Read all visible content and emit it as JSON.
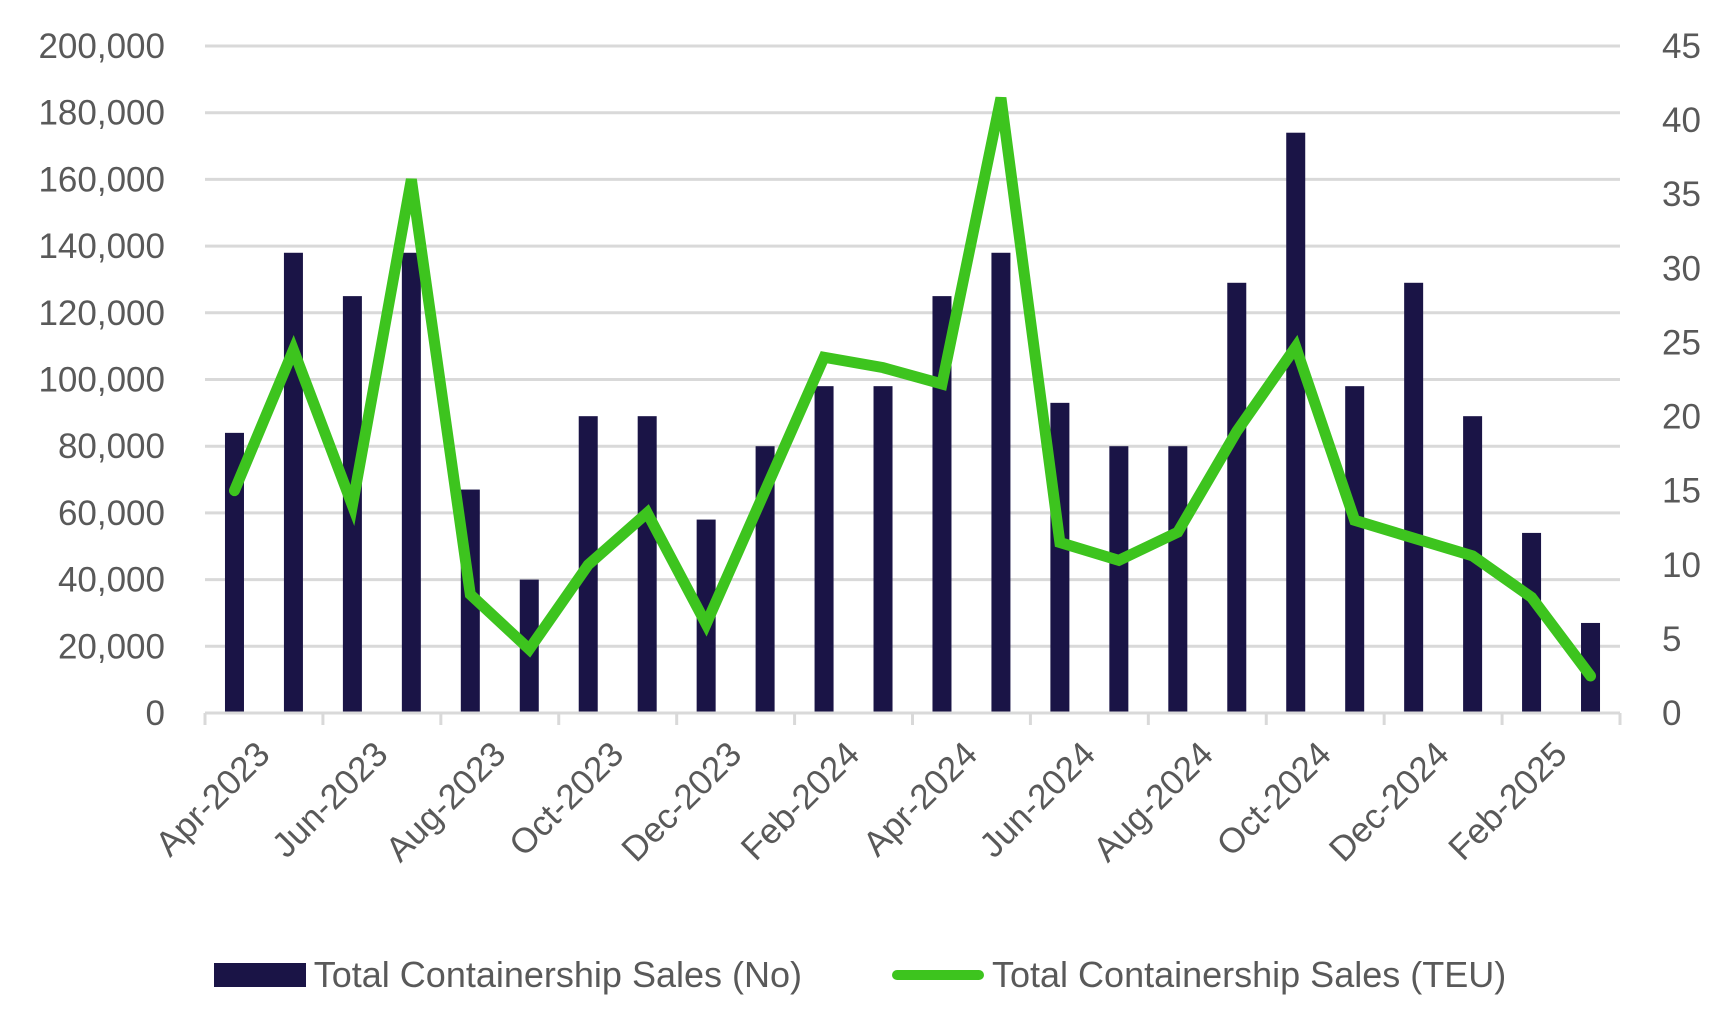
{
  "chart_data": {
    "type": "bar",
    "categories": [
      "Apr-2023",
      "May-2023",
      "Jun-2023",
      "Jul-2023",
      "Aug-2023",
      "Sep-2023",
      "Oct-2023",
      "Nov-2023",
      "Dec-2023",
      "Jan-2024",
      "Feb-2024",
      "Mar-2024",
      "Apr-2024",
      "May-2024",
      "Jun-2024",
      "Jul-2024",
      "Aug-2024",
      "Sep-2024",
      "Oct-2024",
      "Nov-2024",
      "Dec-2024",
      "Jan-2025",
      "Feb-2025",
      "Mar-2025"
    ],
    "x_tick_labels": [
      "Apr-2023",
      "Jun-2023",
      "Aug-2023",
      "Oct-2023",
      "Dec-2023",
      "Feb-2024",
      "Apr-2024",
      "Jun-2024",
      "Aug-2024",
      "Oct-2024",
      "Dec-2024",
      "Feb-2025"
    ],
    "series": [
      {
        "name": "Total Containership Sales (No)",
        "type": "bar",
        "axis": "left",
        "color": "#1a1446",
        "values": [
          84000,
          138000,
          125000,
          138000,
          67000,
          40000,
          89000,
          89000,
          58000,
          80000,
          98000,
          98000,
          125000,
          138000,
          93000,
          80000,
          80000,
          129000,
          174000,
          98000,
          129000,
          89000,
          54000,
          27000
        ]
      },
      {
        "name": "Total Containership Sales (TEU)",
        "type": "line",
        "axis": "right",
        "color": "#3dc41e",
        "values": [
          15,
          24.5,
          14,
          36,
          8,
          4.3,
          10,
          13.5,
          6,
          15,
          24,
          23.3,
          22.2,
          41.5,
          11.5,
          10.3,
          12.2,
          19,
          24.7,
          13,
          11.8,
          10.6,
          7.8,
          2.5
        ]
      }
    ],
    "y_left": {
      "min": 0,
      "max": 200000,
      "ticks": [
        "0",
        "20,000",
        "40,000",
        "60,000",
        "80,000",
        "100,000",
        "120,000",
        "140,000",
        "160,000",
        "180,000",
        "200,000"
      ]
    },
    "y_right": {
      "min": 0,
      "max": 45,
      "ticks": [
        "0",
        "5",
        "10",
        "15",
        "20",
        "25",
        "30",
        "35",
        "40",
        "45"
      ]
    },
    "title": "",
    "xlabel": "",
    "ylabel": "",
    "grid": true,
    "legend_position": "bottom"
  },
  "legend": {
    "bar_label": "Total Containership Sales (No)",
    "line_label": "Total Containership Sales (TEU)"
  }
}
